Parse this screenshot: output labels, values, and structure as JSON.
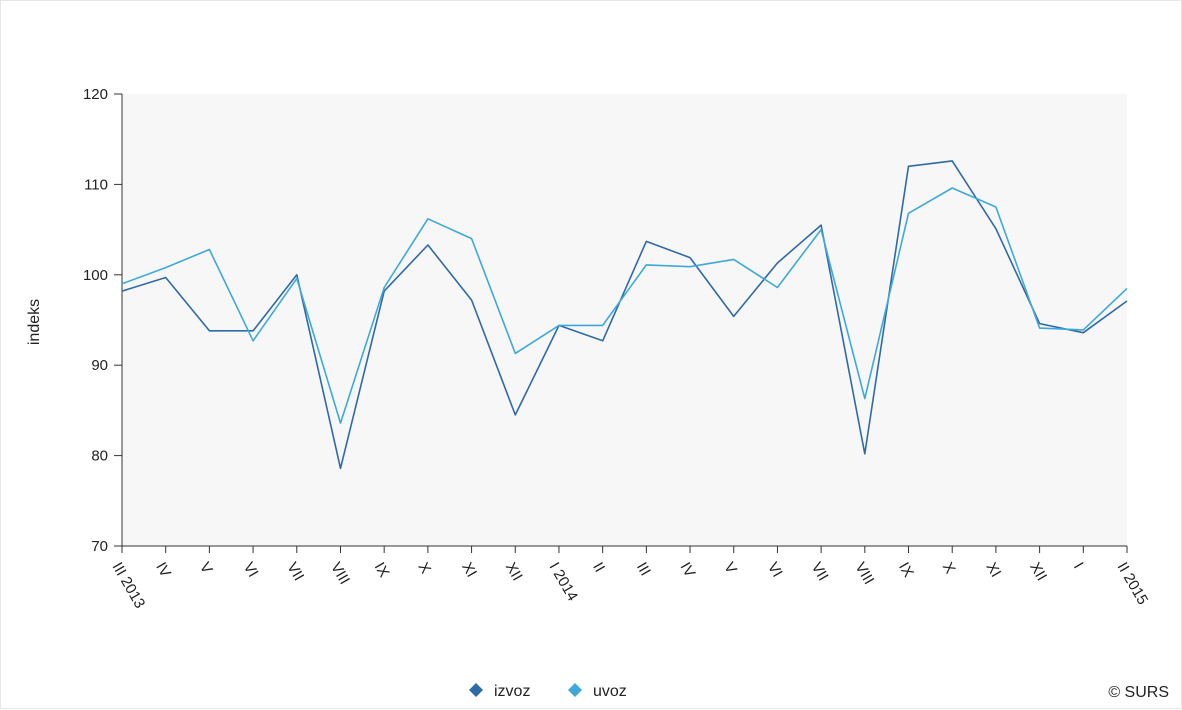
{
  "chart_data": {
    "type": "line",
    "ylabel": "indeks",
    "ylim": [
      70,
      120
    ],
    "yticks": [
      70,
      80,
      90,
      100,
      110,
      120
    ],
    "categories": [
      "III 2013",
      "IV",
      "V",
      "VI",
      "VII",
      "VIII",
      "IX",
      "X",
      "XI",
      "XII",
      "I 2014",
      "II",
      "III",
      "IV",
      "V",
      "VI",
      "VII",
      "VIII",
      "IX",
      "X",
      "XI",
      "XII",
      "I",
      "II 2015"
    ],
    "series": [
      {
        "name": "izvoz",
        "color": "#2f6aa8",
        "values": [
          98.2,
          99.7,
          93.8,
          93.8,
          100.0,
          78.6,
          98.2,
          103.3,
          97.2,
          84.5,
          94.4,
          92.7,
          103.7,
          101.9,
          95.4,
          101.3,
          105.5,
          80.2,
          112.0,
          112.6,
          105.1,
          94.6,
          93.6,
          97.1
        ]
      },
      {
        "name": "uvoz",
        "color": "#3ea9d9",
        "values": [
          99.0,
          100.8,
          102.8,
          92.7,
          99.6,
          83.6,
          98.6,
          106.2,
          104.0,
          91.3,
          94.4,
          94.4,
          101.1,
          100.9,
          101.7,
          98.6,
          105.0,
          86.3,
          106.8,
          109.6,
          107.5,
          94.1,
          93.9,
          98.5
        ]
      }
    ],
    "grid": false,
    "legend": "bottom-center"
  },
  "credit": "© SURS"
}
